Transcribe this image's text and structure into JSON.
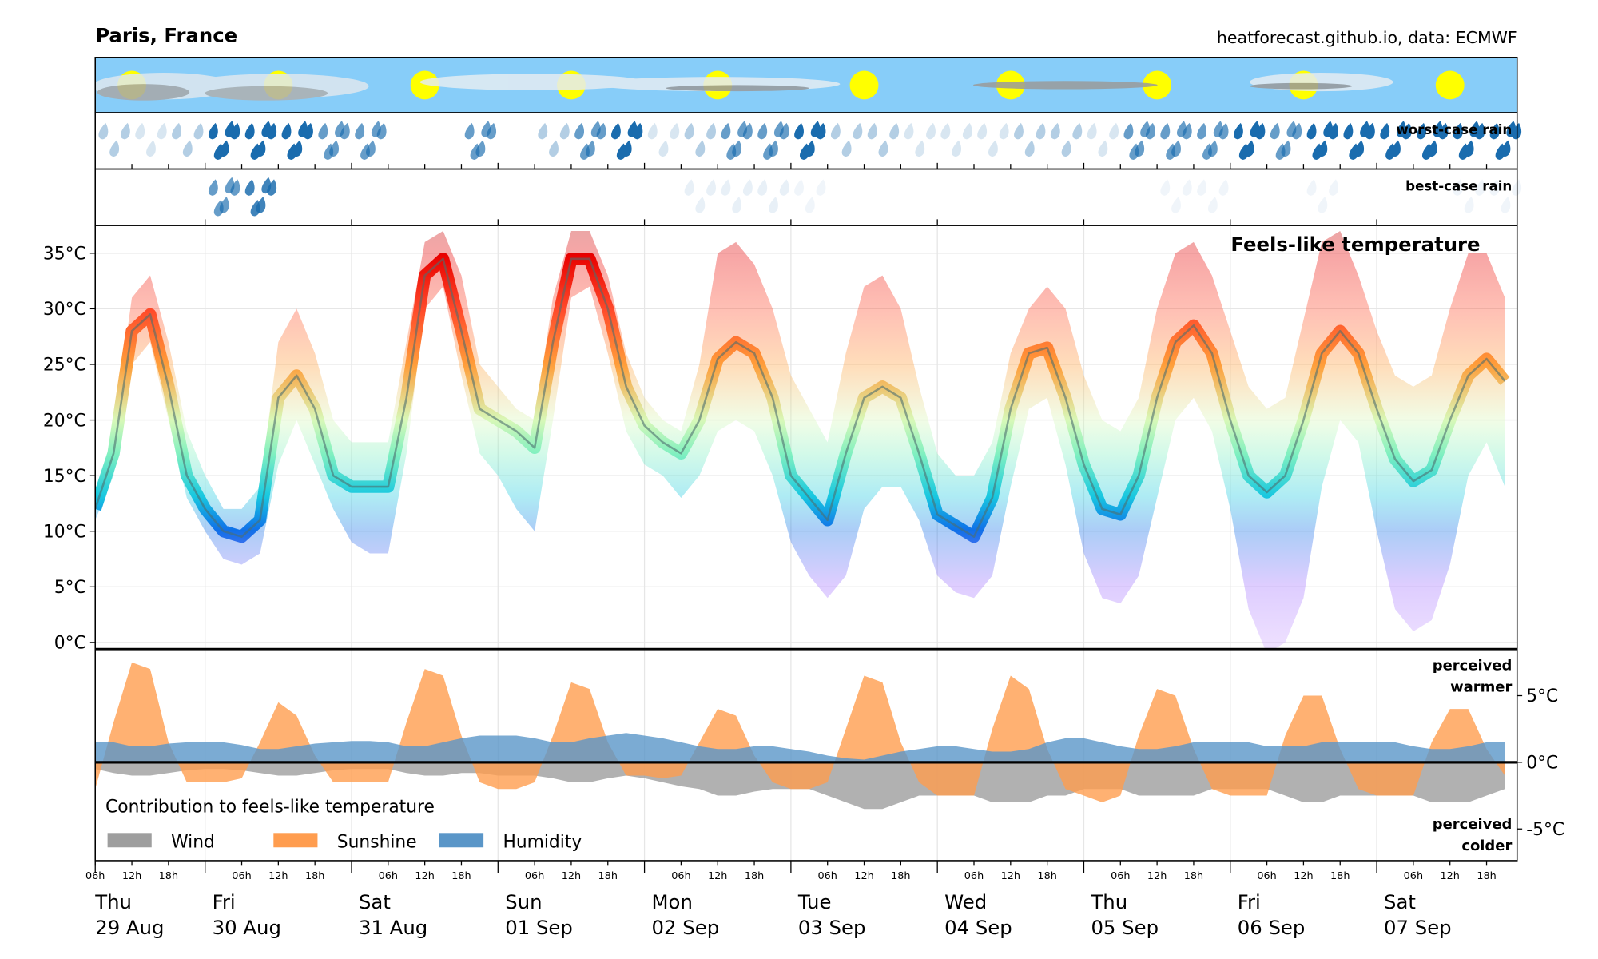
{
  "header": {
    "title": "Paris, France",
    "source": "heatforecast.github.io, data: ECMWF"
  },
  "rain": {
    "worst_label": "worst-case rain",
    "best_label": "best-case rain",
    "worst": [
      1,
      0.5,
      1,
      3,
      3,
      3,
      2,
      2,
      0,
      0,
      2,
      0,
      1,
      2,
      3,
      0.5,
      1,
      2,
      2,
      3,
      1,
      1,
      0.5,
      0.5,
      0.5,
      1,
      1,
      0.5,
      2,
      2,
      2,
      3,
      2,
      3,
      3,
      3,
      3,
      3,
      3
    ],
    "best": [
      0,
      0,
      0,
      2,
      2.5,
      0,
      0,
      0,
      0,
      0,
      0,
      0,
      0,
      0,
      0,
      0,
      0.3,
      0.3,
      0.3,
      0.2,
      0,
      0,
      0,
      0,
      0,
      0,
      0,
      0,
      0,
      0.2,
      0.2,
      0,
      0,
      0.2,
      0,
      0,
      0,
      0.2,
      0.2
    ]
  },
  "chart_data": [
    {
      "type": "line",
      "title": "Feels-like temperature",
      "x": [
        6,
        9,
        12,
        15,
        18,
        21,
        24,
        27,
        30,
        33,
        36,
        39,
        42,
        45,
        48,
        51,
        54,
        57,
        60,
        63,
        66,
        69,
        72,
        75,
        78,
        81,
        84,
        87,
        90,
        93,
        96,
        99,
        102,
        105,
        108,
        111,
        114,
        117,
        120,
        123,
        126,
        129,
        132,
        135,
        138,
        141,
        144,
        147,
        150,
        153,
        156,
        159,
        162,
        165,
        168,
        171,
        174,
        177,
        180,
        183,
        186,
        189,
        192,
        195,
        198,
        201,
        204,
        207,
        210,
        213,
        216,
        219,
        222,
        225,
        228,
        231,
        234,
        237
      ],
      "xlim": [
        6,
        239
      ],
      "ylim": [
        -0.55,
        37.5
      ],
      "yticks": [
        {
          "value": 0,
          "label": "0°C"
        },
        {
          "value": 5,
          "label": "5°C"
        },
        {
          "value": 10,
          "label": "10°C"
        },
        {
          "value": 15,
          "label": "15°C"
        },
        {
          "value": 20,
          "label": "20°C"
        },
        {
          "value": 25,
          "label": "25°C"
        },
        {
          "value": 30,
          "label": "30°C"
        },
        {
          "value": 35,
          "label": "35°C"
        }
      ],
      "grid": true,
      "xticks": [
        {
          "value": 6,
          "label": "06h"
        },
        {
          "value": 12,
          "label": "12h"
        },
        {
          "value": 18,
          "label": "18h"
        },
        {
          "value": 30,
          "label": "06h"
        },
        {
          "value": 36,
          "label": "12h"
        },
        {
          "value": 42,
          "label": "18h"
        },
        {
          "value": 54,
          "label": "06h"
        },
        {
          "value": 60,
          "label": "12h"
        },
        {
          "value": 66,
          "label": "18h"
        },
        {
          "value": 78,
          "label": "06h"
        },
        {
          "value": 84,
          "label": "12h"
        },
        {
          "value": 90,
          "label": "18h"
        },
        {
          "value": 102,
          "label": "06h"
        },
        {
          "value": 108,
          "label": "12h"
        },
        {
          "value": 114,
          "label": "18h"
        },
        {
          "value": 126,
          "label": "06h"
        },
        {
          "value": 132,
          "label": "12h"
        },
        {
          "value": 138,
          "label": "18h"
        },
        {
          "value": 150,
          "label": "06h"
        },
        {
          "value": 156,
          "label": "12h"
        },
        {
          "value": 162,
          "label": "18h"
        },
        {
          "value": 174,
          "label": "06h"
        },
        {
          "value": 180,
          "label": "12h"
        },
        {
          "value": 186,
          "label": "18h"
        },
        {
          "value": 198,
          "label": "06h"
        },
        {
          "value": 204,
          "label": "12h"
        },
        {
          "value": 210,
          "label": "18h"
        },
        {
          "value": 222,
          "label": "06h"
        },
        {
          "value": 228,
          "label": "12h"
        },
        {
          "value": 234,
          "label": "18h"
        }
      ],
      "day_ticks": [
        {
          "value": 6,
          "label": "Thu",
          "date": "29 Aug"
        },
        {
          "value": 24,
          "label": "Fri",
          "date": "30 Aug"
        },
        {
          "value": 48,
          "label": "Sat",
          "date": "31 Aug"
        },
        {
          "value": 72,
          "label": "Sun",
          "date": "01 Sep"
        },
        {
          "value": 96,
          "label": "Mon",
          "date": "02 Sep"
        },
        {
          "value": 120,
          "label": "Tue",
          "date": "03 Sep"
        },
        {
          "value": 144,
          "label": "Wed",
          "date": "04 Sep"
        },
        {
          "value": 168,
          "label": "Thu",
          "date": "05 Sep"
        },
        {
          "value": 192,
          "label": "Fri",
          "date": "06 Sep"
        },
        {
          "value": 216,
          "label": "Sat",
          "date": "07 Sep"
        }
      ],
      "series": [
        {
          "color": "#4d6e6e",
          "values": [
            12,
            17,
            28,
            29.5,
            23,
            15,
            12,
            10,
            9.5,
            11,
            22,
            24,
            21,
            15,
            14,
            14,
            14,
            22,
            33,
            34.5,
            28,
            21,
            20,
            19,
            17.5,
            27,
            34.5,
            34.5,
            30,
            23,
            19.5,
            18,
            17,
            20,
            25.5,
            27,
            26,
            22,
            15,
            13,
            11,
            17,
            22,
            23,
            22,
            17,
            11.5,
            10.5,
            9.5,
            13,
            21,
            26,
            26.5,
            22,
            16,
            12,
            11.5,
            15,
            22,
            27,
            28.5,
            26,
            20,
            15,
            13.5,
            15,
            20,
            26,
            28,
            26,
            21,
            16.5,
            14.5,
            15.5,
            20,
            24,
            25.5,
            23.5
          ]
        }
      ],
      "band": {
        "low": [
          11,
          15,
          25,
          27,
          20,
          13,
          10,
          7.5,
          7,
          8,
          16,
          20,
          16,
          12,
          9,
          8,
          8,
          17,
          30,
          32,
          24,
          17,
          15,
          12,
          10,
          20,
          31,
          32,
          26,
          19,
          16,
          15,
          13,
          15,
          19,
          20,
          19,
          15,
          9,
          6,
          4,
          6,
          12,
          14,
          14,
          11,
          6,
          4.5,
          4,
          6,
          14,
          21,
          22,
          16,
          8,
          4,
          3.5,
          6,
          13,
          20,
          22,
          19,
          12,
          3,
          -1,
          0,
          4,
          14,
          20,
          18,
          10,
          3,
          1,
          2,
          7,
          15,
          18,
          14
        ],
        "high": [
          13,
          19,
          31,
          33,
          27,
          19,
          15,
          12,
          12,
          14,
          27,
          30,
          26,
          20,
          18,
          18,
          18,
          27,
          36,
          37,
          33,
          25,
          23,
          21,
          20,
          31,
          37,
          37,
          33,
          26,
          22,
          20,
          19,
          25,
          35,
          36,
          34,
          30,
          24,
          21,
          18,
          26,
          32,
          33,
          30,
          23,
          17,
          15,
          15,
          18,
          26,
          30,
          32,
          30,
          24,
          20,
          19,
          22,
          30,
          35,
          36,
          33,
          28,
          23,
          21,
          22,
          29,
          36,
          37,
          33,
          28,
          24,
          23,
          24,
          30,
          35,
          35,
          31
        ]
      }
    },
    {
      "type": "area",
      "title": "Contribution to feels-like temperature",
      "x": [
        6,
        9,
        12,
        15,
        18,
        21,
        24,
        27,
        30,
        33,
        36,
        39,
        42,
        45,
        48,
        51,
        54,
        57,
        60,
        63,
        66,
        69,
        72,
        75,
        78,
        81,
        84,
        87,
        90,
        93,
        96,
        99,
        102,
        105,
        108,
        111,
        114,
        117,
        120,
        123,
        126,
        129,
        132,
        135,
        138,
        141,
        144,
        147,
        150,
        153,
        156,
        159,
        162,
        165,
        168,
        171,
        174,
        177,
        180,
        183,
        186,
        189,
        192,
        195,
        198,
        201,
        204,
        207,
        210,
        213,
        216,
        219,
        222,
        225,
        228,
        231,
        234,
        237
      ],
      "ylim": [
        -7.38,
        8.46
      ],
      "yticks": [
        {
          "value": -5,
          "label": "-5°C"
        },
        {
          "value": 0,
          "label": "0°C"
        },
        {
          "value": 5,
          "label": "5°C"
        }
      ],
      "top_note": [
        "perceived",
        "warmer"
      ],
      "bottom_note": [
        "perceived",
        "colder"
      ],
      "series": [
        {
          "name": "Wind",
          "color": "#9e9e9e",
          "values": [
            -0.5,
            -0.8,
            -1,
            -1,
            -0.8,
            -0.6,
            -0.5,
            -0.5,
            -0.6,
            -0.8,
            -1,
            -1,
            -0.8,
            -0.6,
            -0.5,
            -0.5,
            -0.5,
            -0.8,
            -1,
            -1,
            -0.8,
            -0.8,
            -1,
            -1,
            -1,
            -1.2,
            -1.5,
            -1.5,
            -1.2,
            -1,
            -1.2,
            -1.5,
            -1.8,
            -2,
            -2.5,
            -2.5,
            -2.2,
            -2,
            -2,
            -2,
            -2.5,
            -3,
            -3.5,
            -3.5,
            -3,
            -2.5,
            -2.5,
            -2.5,
            -2.5,
            -3,
            -3,
            -3,
            -2.5,
            -2.5,
            -2,
            -2,
            -2,
            -2.5,
            -2.5,
            -2.5,
            -2.5,
            -2,
            -2,
            -2,
            -2,
            -2.5,
            -3,
            -3,
            -2.5,
            -2.5,
            -2.5,
            -2.5,
            -2.5,
            -3,
            -3,
            -3,
            -2.5,
            -2
          ]
        },
        {
          "name": "Sunshine",
          "color": "#ff9d4f",
          "values": [
            -2,
            3,
            7.5,
            7,
            1.5,
            -1.5,
            -1.5,
            -1.5,
            -1.2,
            1.5,
            4.5,
            3.5,
            0.5,
            -1.5,
            -1.5,
            -1.5,
            -1.5,
            3,
            7,
            6.5,
            2,
            -1.5,
            -2,
            -2,
            -1.5,
            2,
            6,
            5.5,
            1.5,
            -1,
            -1,
            -1.2,
            -1,
            1.5,
            4,
            3.5,
            0.5,
            -1.5,
            -2,
            -2,
            -1.5,
            2.5,
            6.5,
            6,
            1.5,
            -1.5,
            -2.5,
            -2.5,
            -2.5,
            2.5,
            6.5,
            5.5,
            1,
            -2,
            -2.5,
            -3,
            -2.5,
            2,
            5.5,
            5,
            1,
            -2,
            -2.5,
            -2.5,
            -2.5,
            2,
            5,
            5,
            1,
            -2,
            -2.5,
            -2.5,
            -2.5,
            1.5,
            4,
            4,
            1,
            -1
          ]
        },
        {
          "name": "Humidity",
          "color": "#5a96c8",
          "values": [
            1.5,
            1.5,
            1.2,
            1.2,
            1.4,
            1.5,
            1.5,
            1.5,
            1.3,
            1,
            1,
            1.2,
            1.4,
            1.5,
            1.6,
            1.6,
            1.5,
            1.2,
            1.2,
            1.5,
            1.8,
            2,
            2,
            2,
            1.8,
            1.5,
            1.5,
            1.8,
            2,
            2.2,
            2,
            1.8,
            1.5,
            1.2,
            1,
            1,
            1.2,
            1.2,
            1,
            0.8,
            0.5,
            0.3,
            0.2,
            0.5,
            0.8,
            1,
            1.2,
            1.2,
            1,
            0.8,
            0.8,
            1,
            1.5,
            1.8,
            1.8,
            1.5,
            1.2,
            1,
            1,
            1.2,
            1.5,
            1.5,
            1.5,
            1.5,
            1.2,
            1.2,
            1.2,
            1.5,
            1.5,
            1.5,
            1.5,
            1.5,
            1.2,
            1,
            1,
            1.2,
            1.5,
            1.5
          ]
        }
      ]
    }
  ]
}
